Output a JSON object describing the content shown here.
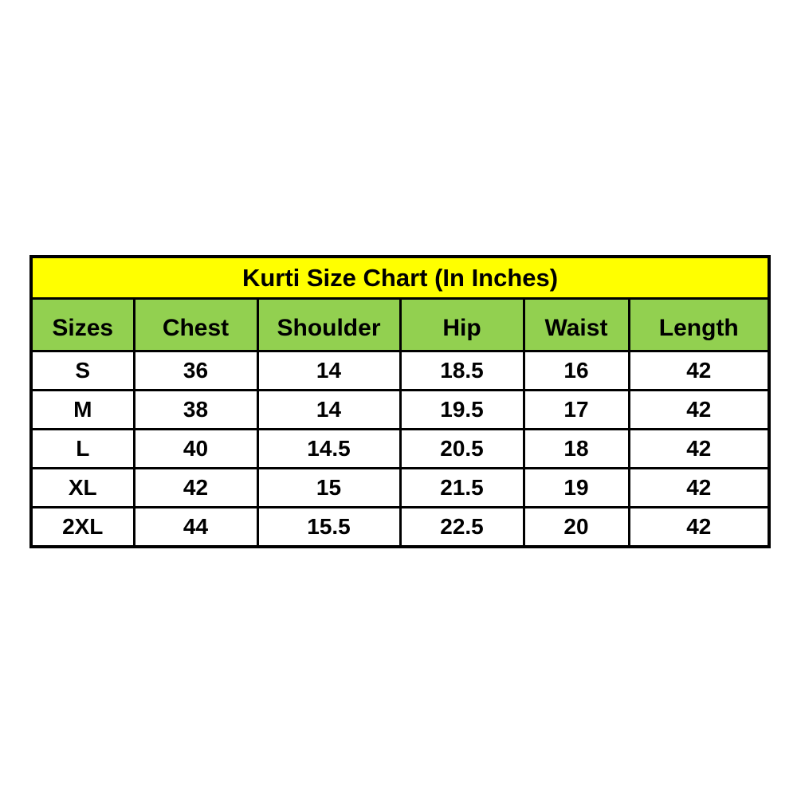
{
  "chart_data": {
    "type": "table",
    "title": "Kurti Size Chart (In Inches)",
    "columns": [
      "Sizes",
      "Chest",
      "Shoulder",
      "Hip",
      "Waist",
      "Length"
    ],
    "rows": [
      [
        "S",
        "36",
        "14",
        "18.5",
        "16",
        "42"
      ],
      [
        "M",
        "38",
        "14",
        "19.5",
        "17",
        "42"
      ],
      [
        "L",
        "40",
        "14.5",
        "20.5",
        "18",
        "42"
      ],
      [
        "XL",
        "42",
        "15",
        "21.5",
        "19",
        "42"
      ],
      [
        "2XL",
        "44",
        "15.5",
        "22.5",
        "20",
        "42"
      ]
    ],
    "units": "Inches"
  },
  "colors": {
    "title_bg": "#ffff00",
    "header_bg": "#92d050",
    "cell_bg": "#ffffff",
    "border": "#000000",
    "text": "#000000",
    "page_bg": "#ffffff"
  }
}
